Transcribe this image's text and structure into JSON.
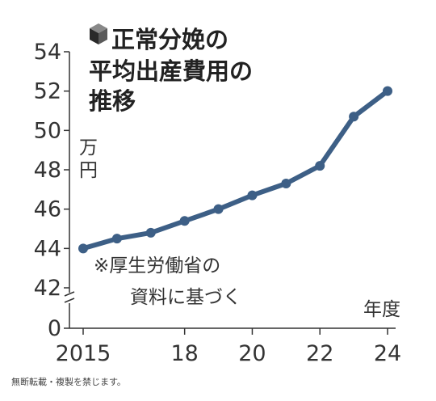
{
  "chart_data": {
    "type": "line",
    "title_lines": [
      "正常分娩の",
      "平均出産費用の",
      "推移"
    ],
    "unit_label": [
      "万",
      "円"
    ],
    "xlabel": "年度",
    "note_lines": [
      "※厚生労働省の",
      "資料に基づく"
    ],
    "x": [
      2015,
      2016,
      2017,
      2018,
      2019,
      2020,
      2021,
      2022,
      2023,
      2024
    ],
    "series": [
      {
        "values": [
          44.0,
          44.5,
          44.8,
          45.4,
          46.0,
          46.7,
          47.3,
          48.2,
          50.7,
          52.0
        ]
      }
    ],
    "x_tick_labels": [
      "2015",
      "18",
      "20",
      "22",
      "24"
    ],
    "x_tick_values": [
      2015,
      2018,
      2020,
      2022,
      2024
    ],
    "y_tick_labels": [
      "54",
      "52",
      "50",
      "48",
      "46",
      "44",
      "42",
      "0"
    ],
    "ylim": [
      42,
      54
    ],
    "y_axis_break": true,
    "grid": false,
    "line_color": "#3d5f86",
    "axis_color": "#333333"
  },
  "footer": "無断転載・複製を禁じます。"
}
